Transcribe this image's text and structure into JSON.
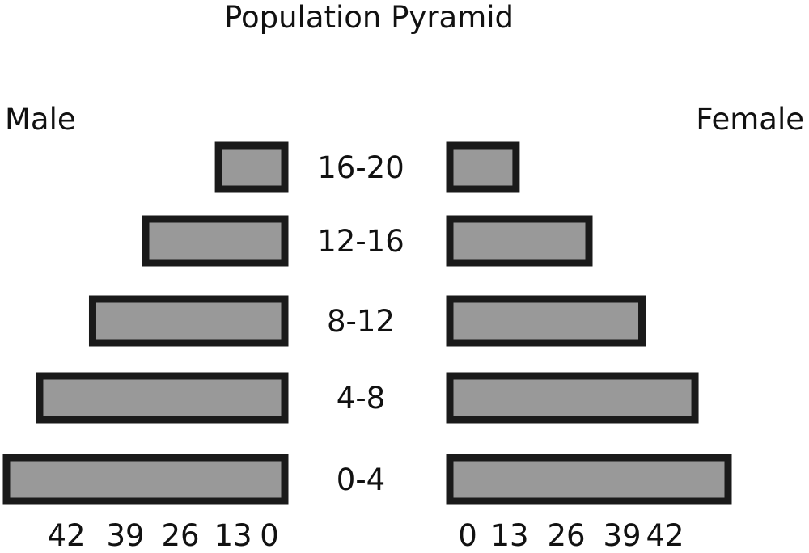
{
  "chart_data": {
    "type": "bar",
    "title": "Population Pyramid",
    "left_label": "Male",
    "right_label": "Female",
    "categories": [
      "0-4",
      "4-8",
      "8-12",
      "12-16",
      "16-20"
    ],
    "series": [
      {
        "name": "Male",
        "values": [
          42,
          37,
          29,
          21,
          10
        ]
      },
      {
        "name": "Female",
        "values": [
          42,
          37,
          29,
          21,
          10
        ]
      }
    ],
    "male_ticks": [
      "42",
      "39",
      "26",
      "13",
      "0"
    ],
    "female_ticks": [
      "0",
      "13",
      "26",
      "39",
      "42"
    ],
    "xlim": [
      0,
      42
    ],
    "bar_color": "#999999",
    "border_color": "#1a1a1a",
    "grid": false
  }
}
